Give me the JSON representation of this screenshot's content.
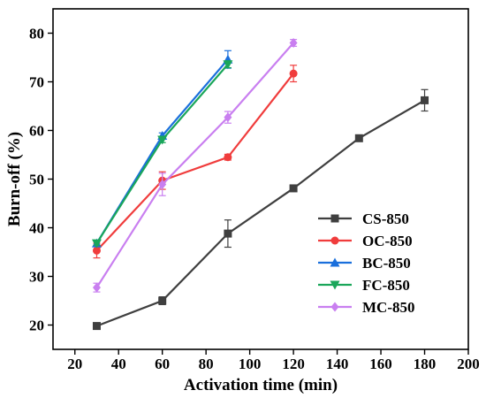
{
  "chart_data": {
    "type": "line",
    "title": "",
    "xlabel": "Activation time (min)",
    "ylabel": "Burn-off (%)",
    "xlim": [
      10,
      200
    ],
    "ylim": [
      15,
      85
    ],
    "xticks": [
      20,
      40,
      60,
      80,
      100,
      120,
      140,
      160,
      180,
      200
    ],
    "yticks": [
      20,
      30,
      40,
      50,
      60,
      70,
      80
    ],
    "grid": false,
    "legend_position": "lower-right",
    "series": [
      {
        "name": "CS-850",
        "color": "#3f3f3f",
        "marker": "square",
        "x": [
          30,
          60,
          90,
          120,
          150,
          180
        ],
        "y": [
          19.8,
          25.0,
          38.8,
          48.1,
          58.4,
          66.2
        ],
        "err": [
          0.3,
          0.8,
          2.8,
          0.4,
          0.3,
          2.2
        ]
      },
      {
        "name": "OC-850",
        "color": "#f03c3c",
        "marker": "circle",
        "x": [
          30,
          60,
          90,
          120
        ],
        "y": [
          35.3,
          49.7,
          54.5,
          71.7
        ],
        "err": [
          1.5,
          1.8,
          0.6,
          1.7
        ]
      },
      {
        "name": "BC-850",
        "color": "#1a6fdc",
        "marker": "triangle-up",
        "x": [
          30,
          60,
          90
        ],
        "y": [
          36.8,
          58.9,
          74.6
        ],
        "err": [
          0.5,
          0.6,
          1.8
        ]
      },
      {
        "name": "FC-850",
        "color": "#1aa65a",
        "marker": "triangle-down",
        "x": [
          30,
          60,
          90
        ],
        "y": [
          36.8,
          58.1,
          73.6
        ],
        "err": [
          0.4,
          0.6,
          0.7
        ]
      },
      {
        "name": "MC-850",
        "color": "#c97ff0",
        "marker": "diamond",
        "x": [
          30,
          60,
          90,
          120
        ],
        "y": [
          27.7,
          48.9,
          62.7,
          78.0
        ],
        "err": [
          0.9,
          2.3,
          1.2,
          0.7
        ]
      }
    ]
  }
}
